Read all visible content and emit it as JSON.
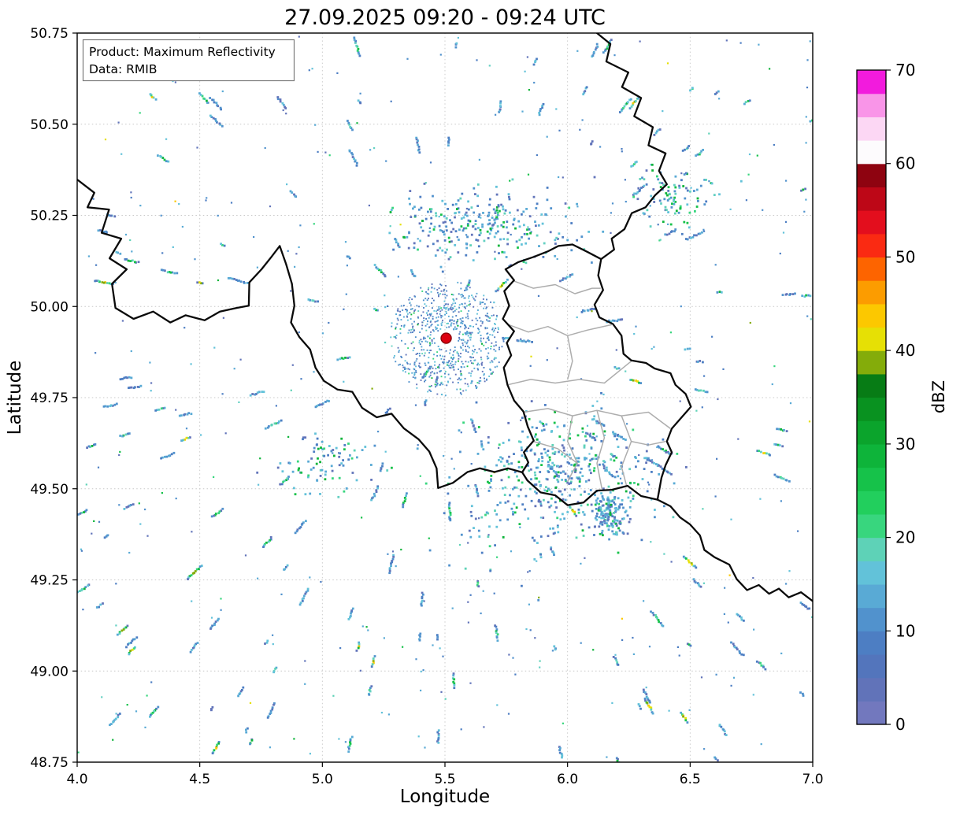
{
  "title": "27.09.2025 09:20 - 09:24 UTC",
  "annotation": {
    "product_line": "Product: Maximum Reflectivity",
    "data_line": "Data: RMIB"
  },
  "chart_data": {
    "type": "heatmap",
    "title": "27.09.2025 09:20 - 09:24 UTC",
    "xlabel": "Longitude",
    "ylabel": "Latitude",
    "xlim": [
      4.0,
      7.0
    ],
    "ylim": [
      48.75,
      50.75
    ],
    "x_ticks": [
      "4.0",
      "4.5",
      "5.0",
      "5.5",
      "6.0",
      "6.5",
      "7.0"
    ],
    "y_ticks": [
      "48.75",
      "49.00",
      "49.25",
      "49.50",
      "49.75",
      "50.00",
      "50.25",
      "50.50",
      "50.75"
    ],
    "grid": true,
    "product": "Maximum Reflectivity",
    "data_source": "RMIB",
    "colorbar": {
      "label": "dBZ",
      "min": 0,
      "max": 70,
      "step": 2.5,
      "ticks": [
        0,
        10,
        20,
        30,
        40,
        50,
        60,
        70
      ],
      "colors": [
        "#7278be",
        "#6173b9",
        "#5375bc",
        "#4d7ec3",
        "#5192cd",
        "#59aad5",
        "#62c2d9",
        "#5ed2b7",
        "#38d67e",
        "#22cf5d",
        "#16c24a",
        "#0eb43a",
        "#0ba42c",
        "#099220",
        "#077c15",
        "#84ac0a",
        "#e6e005",
        "#fcc800",
        "#fc9c00",
        "#fd6400",
        "#fa2a12",
        "#e30e1d",
        "#bd0717",
        "#8e0310",
        "#fdfbfd",
        "#fcd7f4",
        "#f995e8",
        "#f21bdd"
      ]
    },
    "radar_site": {
      "lon": 5.505,
      "lat": 49.913,
      "marker_color": "#dd0010",
      "marker_edge": "#8a0008"
    },
    "borders": {
      "national": [
        [
          [
            4.0,
            50.348
          ],
          [
            4.07,
            50.312
          ],
          [
            4.042,
            50.272
          ],
          [
            4.13,
            50.266
          ],
          [
            4.1,
            50.202
          ],
          [
            4.18,
            50.186
          ],
          [
            4.132,
            50.132
          ],
          [
            4.202,
            50.102
          ],
          [
            4.142,
            50.062
          ],
          [
            4.156,
            49.996
          ],
          [
            4.23,
            49.966
          ],
          [
            4.31,
            49.986
          ],
          [
            4.38,
            49.956
          ],
          [
            4.442,
            49.976
          ],
          [
            4.52,
            49.962
          ],
          [
            4.582,
            49.986
          ],
          [
            4.65,
            49.996
          ],
          [
            4.7,
            50.002
          ],
          [
            4.702,
            50.066
          ],
          [
            4.752,
            50.102
          ],
          [
            4.792,
            50.136
          ],
          [
            4.826,
            50.166
          ],
          [
            4.852,
            50.116
          ],
          [
            4.876,
            50.062
          ],
          [
            4.886,
            50.002
          ],
          [
            4.872,
            49.956
          ],
          [
            4.906,
            49.916
          ],
          [
            4.95,
            49.882
          ],
          [
            4.972,
            49.832
          ],
          [
            5.006,
            49.796
          ],
          [
            5.062,
            49.772
          ],
          [
            5.122,
            49.766
          ],
          [
            5.162,
            49.722
          ],
          [
            5.222,
            49.696
          ],
          [
            5.282,
            49.706
          ],
          [
            5.332,
            49.666
          ],
          [
            5.392,
            49.636
          ],
          [
            5.436,
            49.602
          ],
          [
            5.466,
            49.556
          ],
          [
            5.472,
            49.502
          ],
          [
            5.532,
            49.516
          ],
          [
            5.592,
            49.546
          ],
          [
            5.642,
            49.556
          ],
          [
            5.702,
            49.546
          ],
          [
            5.757,
            49.556
          ],
          [
            5.815,
            49.545
          ]
        ],
        [
          [
            6.12,
            50.75
          ],
          [
            6.175,
            50.72
          ],
          [
            6.158,
            50.672
          ],
          [
            6.248,
            50.642
          ],
          [
            6.222,
            50.602
          ],
          [
            6.3,
            50.572
          ],
          [
            6.272,
            50.522
          ],
          [
            6.348,
            50.492
          ],
          [
            6.33,
            50.442
          ],
          [
            6.4,
            50.42
          ],
          [
            6.373,
            50.372
          ],
          [
            6.405,
            50.335
          ],
          [
            6.357,
            50.305
          ],
          [
            6.318,
            50.272
          ],
          [
            6.262,
            50.256
          ],
          [
            6.232,
            50.212
          ],
          [
            6.18,
            50.186
          ],
          [
            6.19,
            50.156
          ],
          [
            6.137,
            50.13
          ]
        ],
        [
          [
            6.02,
            50.17
          ],
          [
            6.08,
            50.15
          ],
          [
            6.137,
            50.13
          ],
          [
            6.125,
            50.085
          ],
          [
            6.145,
            50.045
          ],
          [
            6.11,
            50.005
          ],
          [
            6.13,
            49.97
          ],
          [
            6.185,
            49.952
          ],
          [
            6.22,
            49.92
          ],
          [
            6.228,
            49.87
          ],
          [
            6.26,
            49.852
          ],
          [
            6.32,
            49.845
          ],
          [
            6.355,
            49.83
          ],
          [
            6.42,
            49.817
          ],
          [
            6.44,
            49.785
          ],
          [
            6.482,
            49.76
          ],
          [
            6.503,
            49.725
          ],
          [
            6.46,
            49.692
          ],
          [
            6.425,
            49.665
          ],
          [
            6.405,
            49.63
          ],
          [
            6.425,
            49.6
          ],
          [
            6.4,
            49.565
          ],
          [
            6.383,
            49.53
          ],
          [
            6.367,
            49.47
          ],
          [
            6.3,
            49.48
          ],
          [
            6.245,
            49.508
          ],
          [
            6.18,
            49.497
          ],
          [
            6.12,
            49.495
          ],
          [
            6.065,
            49.462
          ],
          [
            6.0,
            49.455
          ],
          [
            5.95,
            49.482
          ],
          [
            5.89,
            49.49
          ],
          [
            5.836,
            49.523
          ],
          [
            5.815,
            49.545
          ],
          [
            5.84,
            49.572
          ],
          [
            5.822,
            49.6
          ],
          [
            5.862,
            49.632
          ],
          [
            5.838,
            49.67
          ],
          [
            5.82,
            49.712
          ],
          [
            5.782,
            49.742
          ],
          [
            5.755,
            49.785
          ],
          [
            5.74,
            49.832
          ],
          [
            5.77,
            49.866
          ],
          [
            5.752,
            49.9
          ],
          [
            5.782,
            49.932
          ],
          [
            5.736,
            49.966
          ],
          [
            5.762,
            50.002
          ],
          [
            5.742,
            50.042
          ],
          [
            5.782,
            50.072
          ],
          [
            5.747,
            50.102
          ],
          [
            5.8,
            50.122
          ],
          [
            5.862,
            50.136
          ],
          [
            5.922,
            50.152
          ],
          [
            5.963,
            50.166
          ],
          [
            6.02,
            50.17
          ]
        ],
        [
          [
            6.367,
            49.47
          ],
          [
            6.42,
            49.452
          ],
          [
            6.458,
            49.422
          ],
          [
            6.5,
            49.402
          ],
          [
            6.54,
            49.372
          ],
          [
            6.558,
            49.332
          ],
          [
            6.6,
            49.312
          ],
          [
            6.66,
            49.292
          ],
          [
            6.69,
            49.252
          ],
          [
            6.732,
            49.222
          ],
          [
            6.78,
            49.236
          ],
          [
            6.822,
            49.212
          ],
          [
            6.862,
            49.226
          ],
          [
            6.902,
            49.202
          ],
          [
            6.952,
            49.216
          ],
          [
            7.0,
            49.192
          ]
        ]
      ],
      "internal": [
        [
          [
            5.78,
            50.07
          ],
          [
            5.86,
            50.05
          ],
          [
            5.95,
            50.06
          ],
          [
            6.03,
            50.035
          ],
          [
            6.1,
            50.05
          ],
          [
            6.135,
            50.05
          ]
        ],
        [
          [
            5.76,
            49.95
          ],
          [
            5.84,
            49.93
          ],
          [
            5.92,
            49.945
          ],
          [
            6.0,
            49.92
          ],
          [
            6.08,
            49.935
          ],
          [
            6.18,
            49.95
          ]
        ],
        [
          [
            5.755,
            49.785
          ],
          [
            5.85,
            49.8
          ],
          [
            5.95,
            49.79
          ],
          [
            6.05,
            49.8
          ],
          [
            6.15,
            49.79
          ],
          [
            6.26,
            49.85
          ]
        ],
        [
          [
            6.0,
            49.92
          ],
          [
            6.02,
            49.85
          ],
          [
            6.0,
            49.8
          ]
        ],
        [
          [
            5.82,
            49.71
          ],
          [
            5.92,
            49.72
          ],
          [
            6.02,
            49.7
          ],
          [
            6.12,
            49.715
          ],
          [
            6.22,
            49.7
          ],
          [
            6.33,
            49.71
          ],
          [
            6.42,
            49.665
          ]
        ],
        [
          [
            6.02,
            49.7
          ],
          [
            6.0,
            49.63
          ],
          [
            6.04,
            49.57
          ],
          [
            6.0,
            49.52
          ]
        ],
        [
          [
            6.12,
            49.715
          ],
          [
            6.15,
            49.64
          ],
          [
            6.12,
            49.57
          ],
          [
            6.14,
            49.5
          ]
        ],
        [
          [
            6.22,
            49.7
          ],
          [
            6.26,
            49.63
          ],
          [
            6.22,
            49.56
          ],
          [
            6.24,
            49.51
          ]
        ],
        [
          [
            5.86,
            49.63
          ],
          [
            5.96,
            49.61
          ],
          [
            6.04,
            49.57
          ]
        ],
        [
          [
            6.26,
            49.63
          ],
          [
            6.33,
            49.62
          ],
          [
            6.4,
            49.63
          ]
        ]
      ]
    },
    "echo_field": {
      "seed": 1337,
      "cell": 2.8,
      "palette_low": [
        "#4d7ec3",
        "#5192cd",
        "#59aad5",
        "#6274ba",
        "#62c2d9"
      ],
      "palette_mid": [
        "#38d67e",
        "#16c24a",
        "#5ed2b7",
        "#0eb43a",
        "#63d0c2"
      ],
      "palette_high": [
        "#e6e005",
        "#84ac0a",
        "#fcc800"
      ],
      "background_dots": 430,
      "streaks": 165,
      "clutter_ring": {
        "lon": 5.505,
        "lat": 49.913,
        "r_inner": 0.045,
        "r_outer": 0.235,
        "dots": 750
      },
      "clusters": [
        {
          "lon": 5.66,
          "lat": 50.225,
          "sx": 0.2,
          "sy": 0.055,
          "dots": 270,
          "p_mid": 0.22
        },
        {
          "lon": 5.98,
          "lat": 49.555,
          "sx": 0.19,
          "sy": 0.075,
          "dots": 380,
          "p_mid": 0.3
        },
        {
          "lon": 6.17,
          "lat": 49.435,
          "sx": 0.038,
          "sy": 0.03,
          "dots": 150,
          "p_mid": 0.15
        },
        {
          "lon": 6.43,
          "lat": 50.305,
          "sx": 0.075,
          "sy": 0.042,
          "dots": 95,
          "p_mid": 0.45
        },
        {
          "lon": 5.02,
          "lat": 49.575,
          "sx": 0.1,
          "sy": 0.04,
          "dots": 85,
          "p_mid": 0.3
        },
        {
          "lon": 5.78,
          "lat": 49.385,
          "sx": 0.16,
          "sy": 0.07,
          "dots": 70,
          "p_mid": 0.25
        }
      ],
      "highlight_streaks": [
        {
          "lon": 4.56,
          "lat": 48.79
        },
        {
          "lon": 4.5,
          "lat": 50.688
        },
        {
          "lon": 5.73,
          "lat": 50.062
        },
        {
          "lon": 6.02,
          "lat": 49.44
        },
        {
          "lon": 4.47,
          "lat": 49.272
        },
        {
          "lon": 6.33,
          "lat": 48.905
        },
        {
          "lon": 6.8,
          "lat": 49.6
        },
        {
          "lon": 4.1,
          "lat": 50.07
        }
      ]
    }
  }
}
